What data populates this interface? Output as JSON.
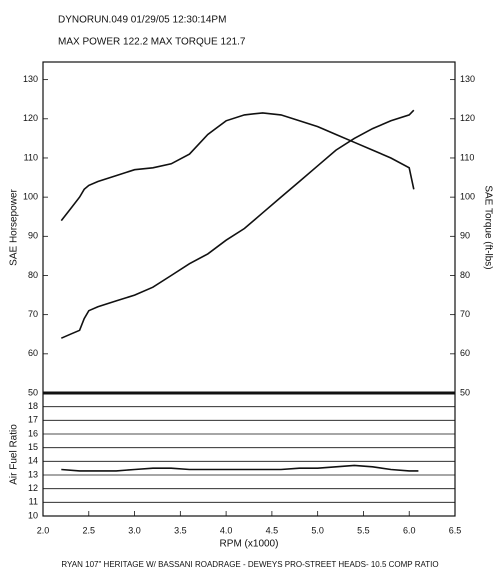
{
  "header": {
    "run": "DYNORUN.049   01/29/05   12:30:14PM",
    "max": "MAX POWER 122.2    MAX TORQUE 121.7"
  },
  "footer": "RYAN 107\" HERITAGE  W/ BASSANI ROADRAGE - DEWEYS PRO-STREET HEADS- 10.5 COMP RATIO",
  "chart_data": [
    {
      "type": "line",
      "y_label": "SAE Horsepower",
      "y2_label": "SAE Torque (ft-lbs)",
      "x": [
        2.2,
        2.3,
        2.4,
        2.45,
        2.5,
        2.6,
        2.8,
        3.0,
        3.2,
        3.4,
        3.6,
        3.8,
        4.0,
        4.2,
        4.4,
        4.6,
        4.8,
        5.0,
        5.2,
        5.4,
        5.6,
        5.8,
        6.0,
        6.05
      ],
      "xlim": [
        2.0,
        6.5
      ],
      "ylim": [
        50,
        134.5
      ],
      "yticks": [
        50,
        60,
        70,
        80,
        90,
        100,
        110,
        120,
        130
      ],
      "y2lim": [
        50,
        134.5
      ],
      "y2ticks": [
        50,
        60,
        70,
        80,
        90,
        100,
        110,
        120,
        130
      ],
      "series": [
        {
          "name": "SAE Horsepower",
          "color": "#111111",
          "values": [
            64,
            65,
            66,
            69,
            71,
            72,
            73.5,
            75,
            77,
            80,
            83,
            85.5,
            89,
            92,
            96,
            100,
            104,
            108,
            112,
            115,
            117.5,
            119.5,
            121,
            122.2
          ]
        },
        {
          "name": "SAE Torque (ft-lbs)",
          "color": "#111111",
          "axis": "y2",
          "values": [
            94,
            97,
            100,
            102,
            103,
            104,
            105.5,
            107,
            107.5,
            108.5,
            111,
            116,
            119.5,
            121,
            121.5,
            121,
            119.5,
            118,
            116,
            114,
            112,
            110,
            107.5,
            102
          ]
        }
      ]
    },
    {
      "type": "line",
      "y_label": "Air Fuel Ratio",
      "x_label": "RPM (x1000)",
      "x": [
        2.2,
        2.4,
        2.6,
        2.8,
        3.0,
        3.2,
        3.4,
        3.6,
        3.8,
        4.0,
        4.2,
        4.4,
        4.6,
        4.8,
        5.0,
        5.2,
        5.4,
        5.6,
        5.8,
        6.0,
        6.1
      ],
      "xlim": [
        2.0,
        6.5
      ],
      "xticks": [
        {
          "value": 2.0,
          "label": "2.0"
        },
        2.5,
        {
          "value": 3.0,
          "label": "3.0"
        },
        3.5,
        {
          "value": 4.0,
          "label": "4.0"
        },
        4.5,
        {
          "value": 5.0,
          "label": "5.0"
        },
        5.5,
        {
          "value": 6.0,
          "label": "6.0"
        },
        6.5
      ],
      "ylim": [
        10,
        19
      ],
      "yticks": [
        10,
        11,
        12,
        13,
        14,
        15,
        16,
        17,
        18
      ],
      "grid": true,
      "series": [
        {
          "name": "Air Fuel Ratio",
          "color": "#111111",
          "values": [
            13.4,
            13.3,
            13.3,
            13.3,
            13.4,
            13.5,
            13.5,
            13.4,
            13.4,
            13.4,
            13.4,
            13.4,
            13.4,
            13.5,
            13.5,
            13.6,
            13.7,
            13.6,
            13.4,
            13.3,
            13.3
          ]
        }
      ]
    }
  ]
}
